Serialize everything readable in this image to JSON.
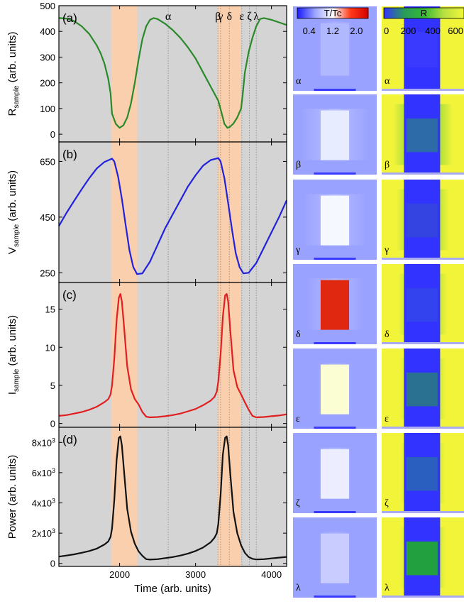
{
  "chart_data": [
    {
      "type": "line",
      "panel": "(a)",
      "ylabel_main": "R",
      "ylabel_sub": "sample",
      "ylabel_tail": " (arb. units)",
      "xlim": [
        1200,
        4200
      ],
      "ylim": [
        -30,
        500
      ],
      "yticks": [
        0,
        100,
        200,
        300,
        400,
        500
      ],
      "ytick_labels": [
        "0",
        "100",
        "200",
        "300",
        "400",
        "500"
      ],
      "color": "#2a8a2a",
      "x": [
        1200,
        1300,
        1400,
        1500,
        1600,
        1700,
        1750,
        1800,
        1850,
        1880,
        1900,
        1950,
        2000,
        2050,
        2100,
        2150,
        2200,
        2250,
        2300,
        2350,
        2400,
        2450,
        2500,
        2600,
        2700,
        2800,
        2900,
        3000,
        3100,
        3200,
        3300,
        3350,
        3380,
        3420,
        3450,
        3500,
        3550,
        3600,
        3620,
        3650,
        3700,
        3750,
        3800,
        3850,
        3900,
        4000,
        4100,
        4200
      ],
      "y": [
        452,
        450,
        440,
        420,
        390,
        345,
        315,
        275,
        215,
        160,
        80,
        40,
        25,
        35,
        65,
        120,
        200,
        290,
        370,
        420,
        445,
        452,
        448,
        430,
        405,
        375,
        338,
        295,
        240,
        185,
        130,
        75,
        40,
        25,
        28,
        42,
        65,
        100,
        150,
        240,
        320,
        375,
        420,
        448,
        452,
        445,
        435,
        425
      ]
    },
    {
      "type": "line",
      "panel": "(b)",
      "ylabel_main": "V",
      "ylabel_sub": "sample",
      "ylabel_tail": " (arb. units)",
      "xlim": [
        1200,
        4200
      ],
      "ylim": [
        215,
        720
      ],
      "yticks": [
        250,
        450,
        650
      ],
      "ytick_labels": [
        "250",
        "450",
        "650"
      ],
      "color": "#2222dd",
      "x": [
        1200,
        1300,
        1400,
        1500,
        1600,
        1700,
        1800,
        1900,
        1930,
        1980,
        2030,
        2080,
        2130,
        2180,
        2230,
        2300,
        2400,
        2500,
        2600,
        2700,
        2800,
        2900,
        3000,
        3100,
        3200,
        3300,
        3330,
        3380,
        3430,
        3480,
        3530,
        3580,
        3630,
        3700,
        3800,
        3900,
        4000,
        4100,
        4200
      ],
      "y": [
        418,
        465,
        508,
        550,
        590,
        625,
        648,
        660,
        650,
        595,
        515,
        420,
        330,
        270,
        245,
        248,
        290,
        350,
        410,
        460,
        510,
        560,
        600,
        635,
        655,
        662,
        650,
        590,
        500,
        405,
        320,
        270,
        248,
        250,
        285,
        340,
        395,
        450,
        510
      ]
    },
    {
      "type": "line",
      "panel": "(c)",
      "ylabel_main": "I",
      "ylabel_sub": "sample",
      "ylabel_tail": " (arb. units)",
      "xlim": [
        1200,
        4200
      ],
      "ylim": [
        -0.5,
        18.5
      ],
      "yticks": [
        0,
        5,
        10,
        15
      ],
      "ytick_labels": [
        "0",
        "5",
        "10",
        "15"
      ],
      "color": "#e02020",
      "x": [
        1200,
        1300,
        1400,
        1500,
        1600,
        1700,
        1800,
        1850,
        1880,
        1900,
        1930,
        1960,
        1990,
        2010,
        2030,
        2060,
        2100,
        2150,
        2200,
        2250,
        2300,
        2350,
        2400,
        2500,
        2600,
        2700,
        2800,
        2900,
        3000,
        3100,
        3200,
        3250,
        3280,
        3300,
        3330,
        3360,
        3390,
        3410,
        3430,
        3460,
        3500,
        3550,
        3600,
        3650,
        3700,
        3750,
        3800,
        3900,
        4000,
        4100,
        4200
      ],
      "y": [
        1.0,
        1.1,
        1.3,
        1.5,
        1.8,
        2.2,
        2.8,
        3.2,
        3.8,
        5.0,
        8.5,
        13.5,
        16.5,
        17.0,
        16.0,
        12.5,
        7.5,
        4.5,
        3.2,
        2.5,
        1.5,
        0.9,
        0.8,
        0.85,
        0.95,
        1.1,
        1.3,
        1.6,
        1.9,
        2.4,
        3.0,
        3.5,
        4.2,
        5.5,
        9.0,
        14.0,
        16.8,
        17.0,
        16.0,
        12.0,
        7.0,
        4.8,
        3.8,
        2.8,
        1.8,
        1.0,
        0.8,
        0.85,
        0.95,
        1.05,
        1.2
      ]
    },
    {
      "type": "line",
      "panel": "(d)",
      "ylabel_main": "Power",
      "ylabel_sub": "",
      "ylabel_tail": " (arb. units)",
      "xlabel": "Time (arb. units)",
      "xlim": [
        1200,
        4200
      ],
      "ylim": [
        -200,
        9000
      ],
      "yticks": [
        0,
        2000,
        4000,
        6000,
        8000
      ],
      "ytick_labels": [
        "0",
        "2x10",
        "4x10",
        "6x10",
        "8x10"
      ],
      "ytick_exps": [
        "",
        "3",
        "3",
        "3",
        "3"
      ],
      "xticks": [
        2000,
        3000,
        4000
      ],
      "xtick_labels": [
        "2000",
        "3000",
        "4000"
      ],
      "color": "#111111",
      "x": [
        1200,
        1300,
        1400,
        1500,
        1600,
        1700,
        1800,
        1850,
        1880,
        1900,
        1930,
        1960,
        1990,
        2010,
        2030,
        2060,
        2100,
        2150,
        2200,
        2250,
        2300,
        2350,
        2400,
        2500,
        2600,
        2700,
        2800,
        2900,
        3000,
        3100,
        3200,
        3250,
        3280,
        3300,
        3330,
        3360,
        3390,
        3410,
        3430,
        3460,
        3500,
        3550,
        3600,
        3650,
        3700,
        3750,
        3800,
        3900,
        4000,
        4100,
        4200
      ],
      "y": [
        450,
        520,
        600,
        700,
        820,
        980,
        1250,
        1450,
        1750,
        2300,
        4200,
        6800,
        8300,
        8400,
        7800,
        6000,
        3600,
        2100,
        1300,
        800,
        500,
        280,
        250,
        280,
        350,
        420,
        520,
        650,
        820,
        1050,
        1400,
        1700,
        2000,
        2600,
        4500,
        7200,
        8300,
        8400,
        7800,
        5800,
        3400,
        2000,
        1200,
        700,
        420,
        300,
        260,
        280,
        330,
        380,
        430
      ]
    }
  ],
  "highlight_bands_x": [
    [
      1890,
      2230
    ],
    [
      3290,
      3600
    ]
  ],
  "event_markers": [
    {
      "label": "α",
      "x": 2640
    },
    {
      "label": "β",
      "x": 3295
    },
    {
      "label": "γ",
      "x": 3330
    },
    {
      "label": "δ",
      "x": 3445
    },
    {
      "label": "ε",
      "x": 3610
    },
    {
      "label": "ζ",
      "x": 3710
    },
    {
      "label": "λ",
      "x": 3800
    }
  ],
  "colors": {
    "plot_background": "#d4d4d4",
    "band": "#f9cfae",
    "marker_line": "#888888"
  },
  "maps": {
    "temperature": {
      "title": "T/Tc",
      "tick_labels": [
        "0.4",
        "1.2",
        "2.0"
      ],
      "tick_values": [
        0.4,
        1.2,
        2.0
      ],
      "range": [
        0,
        2.4
      ],
      "gradient": [
        "#1a1aff",
        "#9aa4ff",
        "#ffffff",
        "#ff3a1a",
        "#d40000"
      ],
      "frames": [
        {
          "label": "α",
          "core_color": "#b0b8ff",
          "spread": 0.1
        },
        {
          "label": "β",
          "core_color": "#e8ecff",
          "spread": 0.7
        },
        {
          "label": "γ",
          "core_color": "#f6f8ff",
          "spread": 0.6
        },
        {
          "label": "δ",
          "core_color": "#e02810",
          "spread": 0.5
        },
        {
          "label": "ε",
          "core_color": "#fbfdd2",
          "spread": 0.15
        },
        {
          "label": "ζ",
          "core_color": "#eceeff",
          "spread": 0.1
        },
        {
          "label": "λ",
          "core_color": "#c8ccff",
          "spread": 0.05
        }
      ]
    },
    "resistance": {
      "title": "R",
      "tick_labels": [
        "0",
        "200",
        "400",
        "600"
      ],
      "tick_values": [
        0,
        200,
        400,
        600
      ],
      "range": [
        0,
        620
      ],
      "gradient": [
        "#3333ff",
        "#2a9a5a",
        "#33bb33",
        "#b8e040",
        "#f0f63a"
      ],
      "frames": [
        {
          "label": "α",
          "center_color": "#3a3aff",
          "green_spread": 0.15
        },
        {
          "label": "β",
          "center_color": "#2d6aa8",
          "green_spread": 0.9
        },
        {
          "label": "γ",
          "center_color": "#3344e0",
          "green_spread": 0.7
        },
        {
          "label": "δ",
          "center_color": "#3344ee",
          "green_spread": 0.6
        },
        {
          "label": "ε",
          "center_color": "#2a7090",
          "green_spread": 0.5
        },
        {
          "label": "ζ",
          "center_color": "#2a5fbf",
          "green_spread": 0.45
        },
        {
          "label": "λ",
          "center_color": "#22a040",
          "green_spread": 0.5
        }
      ]
    }
  }
}
